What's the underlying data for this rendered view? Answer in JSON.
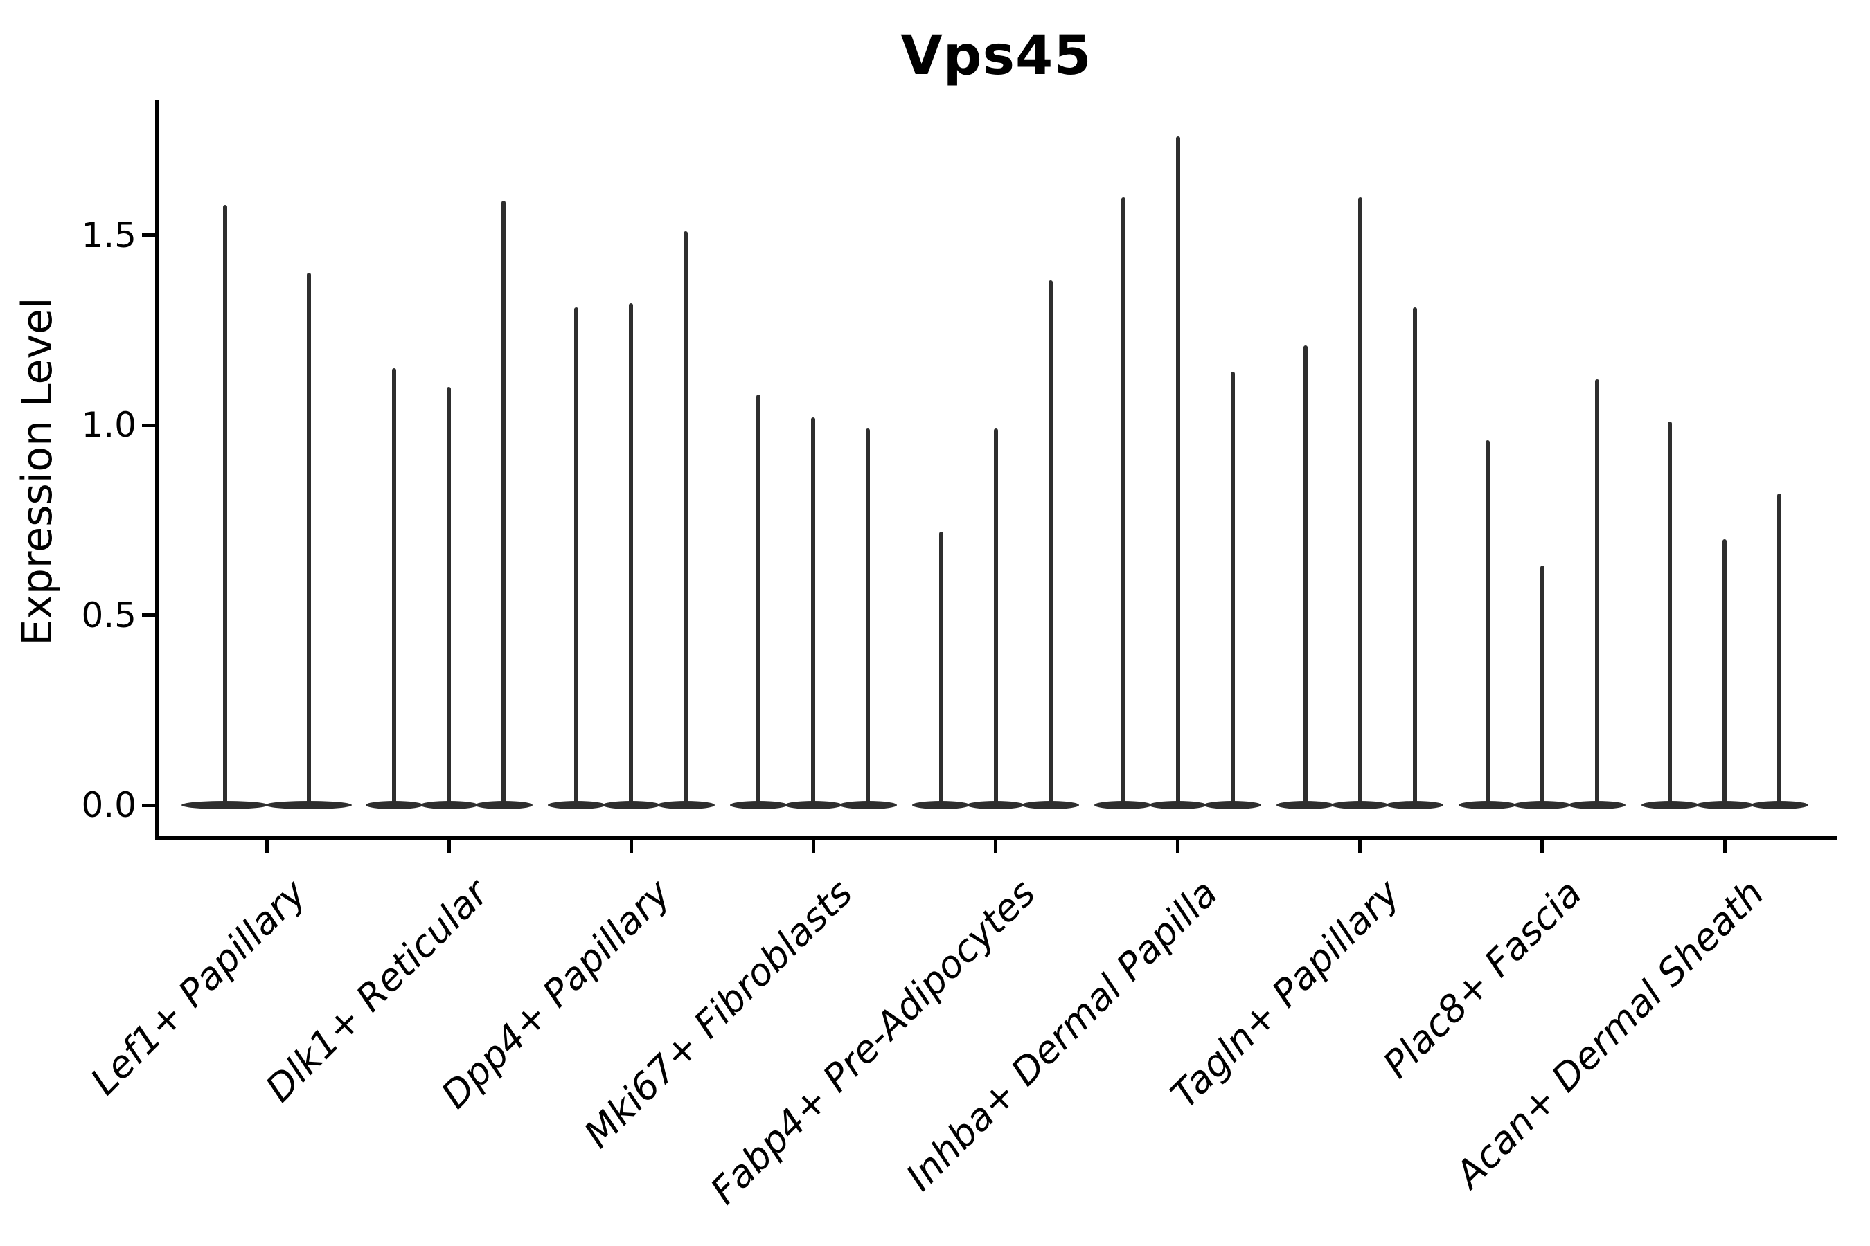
{
  "chart_data": {
    "type": "violin",
    "title": "Vps45",
    "xlabel": "",
    "ylabel": "Expression Level",
    "ylim": [
      -0.09,
      1.85
    ],
    "yticks": [
      {
        "value": 0.0,
        "label": "0.0"
      },
      {
        "value": 0.5,
        "label": "0.5"
      },
      {
        "value": 1.0,
        "label": "1.0"
      },
      {
        "value": 1.5,
        "label": "1.5"
      }
    ],
    "grid": false,
    "legend": "none",
    "ink_color": "#2e2e2e",
    "axis_color": "#000000",
    "description": "Violin plot of Vps45 expression; each cell-type category contains 2-3 narrow violins (density concentrated at 0 with a thin spike up to the max expression value).",
    "categories": [
      "Lef1+ Papillary",
      "Dlk1+ Reticular",
      "Dpp4+ Papillary",
      "Mki67+ Fibroblasts",
      "Fabp4+ Pre-Adipocytes",
      "Inhba+ Dermal Papilla",
      "Tagln+ Papillary",
      "Plac8+ Fascia",
      "Acan+ Dermal Sheath"
    ],
    "groups": [
      {
        "category": "Lef1+ Papillary",
        "violin_max_values": [
          1.58,
          1.4
        ]
      },
      {
        "category": "Dlk1+ Reticular",
        "violin_max_values": [
          1.15,
          1.1,
          1.59
        ]
      },
      {
        "category": "Dpp4+ Papillary",
        "violin_max_values": [
          1.31,
          1.32,
          1.51
        ]
      },
      {
        "category": "Mki67+ Fibroblasts",
        "violin_max_values": [
          1.08,
          1.02,
          0.99
        ]
      },
      {
        "category": "Fabp4+ Pre-Adipocytes",
        "violin_max_values": [
          0.72,
          0.99,
          1.38
        ]
      },
      {
        "category": "Inhba+ Dermal Papilla",
        "violin_max_values": [
          1.6,
          1.76,
          1.14
        ]
      },
      {
        "category": "Tagln+ Papillary",
        "violin_max_values": [
          1.21,
          1.6,
          1.31
        ]
      },
      {
        "category": "Plac8+ Fascia",
        "violin_max_values": [
          0.96,
          0.63,
          1.12
        ]
      },
      {
        "category": "Acan+ Dermal Sheath",
        "violin_max_values": [
          1.01,
          0.7,
          0.82
        ]
      }
    ]
  }
}
